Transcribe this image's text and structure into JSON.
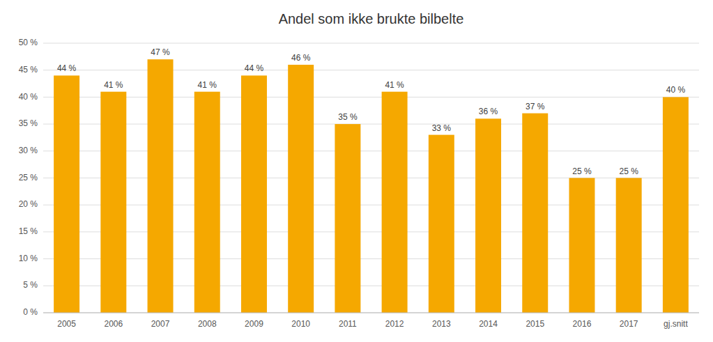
{
  "chart_data": {
    "type": "bar",
    "title": "Andel som ikke brukte bilbelte",
    "categories": [
      "2005",
      "2006",
      "2007",
      "2008",
      "2009",
      "2010",
      "2011",
      "2012",
      "2013",
      "2014",
      "2015",
      "2016",
      "2017",
      "gj.snitt"
    ],
    "values": [
      44,
      41,
      47,
      41,
      44,
      46,
      35,
      41,
      33,
      36,
      37,
      25,
      25,
      40
    ],
    "value_labels": [
      "44 %",
      "41 %",
      "47 %",
      "41 %",
      "44 %",
      "46 %",
      "35 %",
      "41 %",
      "33 %",
      "36 %",
      "37 %",
      "25 %",
      "25 %",
      "40 %"
    ],
    "data_labels": true,
    "color": "#F5A800",
    "ylim": [
      0,
      50
    ],
    "yticks": [
      {
        "value": 0,
        "label": "0 %"
      },
      {
        "value": 5,
        "label": "5 %"
      },
      {
        "value": 10,
        "label": "10 %"
      },
      {
        "value": 15,
        "label": "15 %"
      },
      {
        "value": 20,
        "label": "20 %"
      },
      {
        "value": 25,
        "label": "25 %"
      },
      {
        "value": 30,
        "label": "30 %"
      },
      {
        "value": 35,
        "label": "35 %"
      },
      {
        "value": 40,
        "label": "40 %"
      },
      {
        "value": 45,
        "label": "45 %"
      },
      {
        "value": 50,
        "label": "50 %"
      }
    ],
    "grid": true
  }
}
